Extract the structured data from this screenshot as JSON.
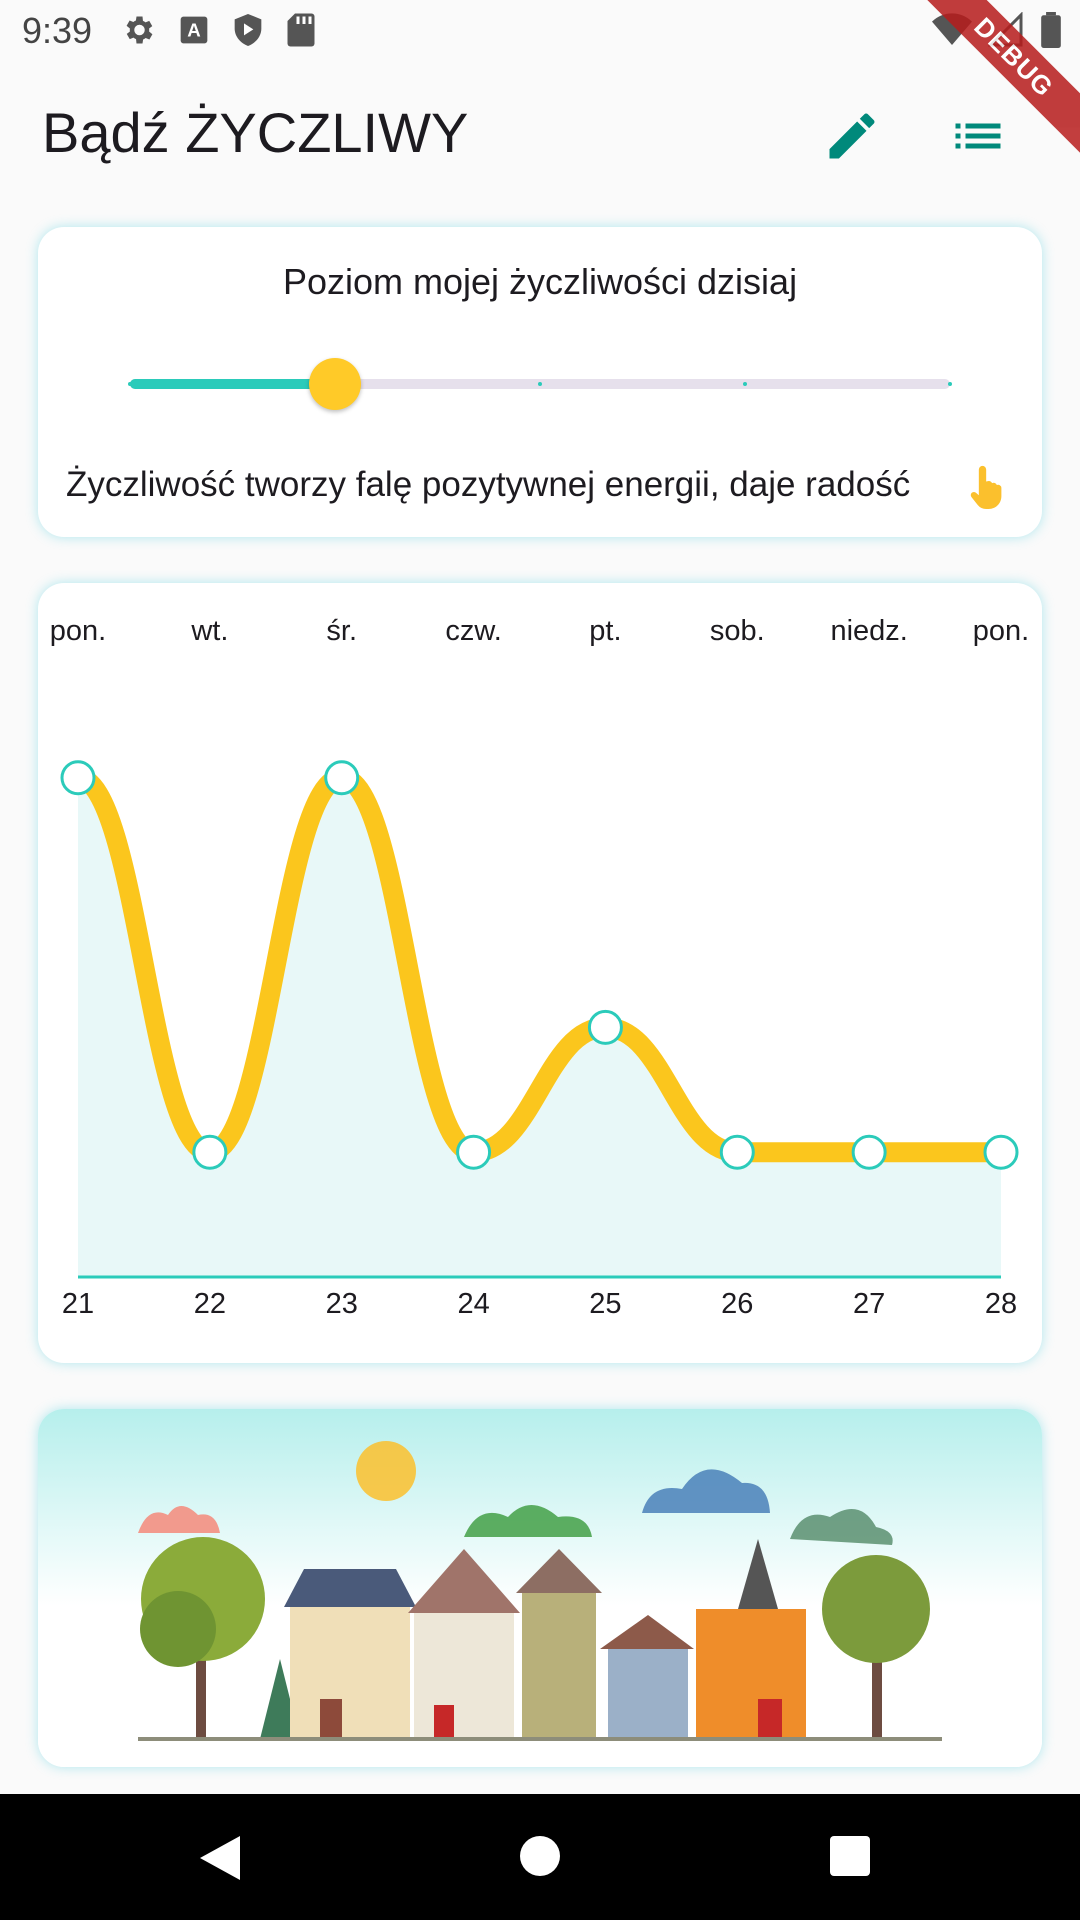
{
  "status_bar": {
    "time": "9:39",
    "icons_left": [
      "gear-icon",
      "a-icon",
      "shield-play-icon",
      "sd-card-icon"
    ],
    "icons_right": [
      "wifi-icon",
      "signal-icon",
      "battery-icon"
    ]
  },
  "debug_banner": "DEBUG",
  "app_bar": {
    "title": "Bądź ŻYCZLIWY",
    "actions": [
      "edit-icon",
      "list-icon"
    ]
  },
  "kindness_card": {
    "title": "Poziom mojej życzliwości dzisiaj",
    "slider_value_fraction": 0.25,
    "slider_divisions": 4,
    "message": "Życzliwość tworzy falę pozytywnej energii, daje radość",
    "hint_icon": "tap-hand-icon"
  },
  "chart_data": {
    "type": "line",
    "x": [
      "21",
      "22",
      "23",
      "24",
      "25",
      "26",
      "27",
      "28"
    ],
    "day_labels": [
      "pon.",
      "wt.",
      "śr.",
      "czw.",
      "pt.",
      "sob.",
      "niedz.",
      "pon."
    ],
    "values": [
      4,
      1,
      4,
      1,
      2,
      1,
      1,
      1
    ],
    "ylim": [
      0,
      5
    ],
    "curved": true,
    "grid": false
  },
  "illustration": {
    "name": "town-illustration"
  },
  "colors": {
    "accent": "#2bcbba",
    "line": "#fbc61d",
    "area": "#e8f8f8",
    "thumb": "#ffca28",
    "icon": "#00897b"
  },
  "nav_bar": [
    "back-icon",
    "home-icon",
    "recent-apps-icon"
  ]
}
